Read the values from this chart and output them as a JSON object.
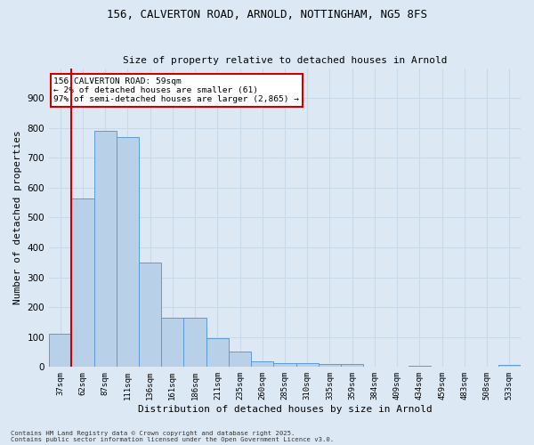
{
  "title1": "156, CALVERTON ROAD, ARNOLD, NOTTINGHAM, NG5 8FS",
  "title2": "Size of property relative to detached houses in Arnold",
  "xlabel": "Distribution of detached houses by size in Arnold",
  "ylabel": "Number of detached properties",
  "categories": [
    "37sqm",
    "62sqm",
    "87sqm",
    "111sqm",
    "136sqm",
    "161sqm",
    "186sqm",
    "211sqm",
    "235sqm",
    "260sqm",
    "285sqm",
    "310sqm",
    "335sqm",
    "359sqm",
    "384sqm",
    "409sqm",
    "434sqm",
    "459sqm",
    "483sqm",
    "508sqm",
    "533sqm"
  ],
  "values": [
    110,
    565,
    790,
    770,
    350,
    165,
    165,
    97,
    52,
    18,
    13,
    12,
    10,
    9,
    0,
    0,
    5,
    0,
    0,
    0,
    7
  ],
  "bar_color": "#b8d0e8",
  "bar_edge_color": "#5b9bd5",
  "grid_color": "#c8daea",
  "bg_color": "#dce9f5",
  "vline_color": "#cc0000",
  "annotation_title": "156 CALVERTON ROAD: 59sqm",
  "annotation_line1": "← 2% of detached houses are smaller (61)",
  "annotation_line2": "97% of semi-detached houses are larger (2,865) →",
  "annotation_box_color": "white",
  "annotation_box_edge": "#cc0000",
  "ylim": [
    0,
    1000
  ],
  "yticks": [
    0,
    100,
    200,
    300,
    400,
    500,
    600,
    700,
    800,
    900
  ],
  "footer1": "Contains HM Land Registry data © Crown copyright and database right 2025.",
  "footer2": "Contains public sector information licensed under the Open Government Licence v3.0."
}
